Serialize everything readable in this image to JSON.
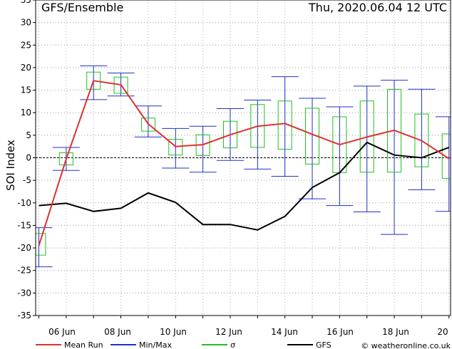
{
  "chart_data": {
    "type": "line",
    "title": "GFS/Ensemble",
    "timestamp": "Thu, 2020.06.04   12 UTC",
    "ylabel": "SOI Index",
    "ylim": [
      -35,
      35
    ],
    "yticks": [
      -35,
      -30,
      -25,
      -20,
      -15,
      -10,
      -5,
      0,
      5,
      10,
      15,
      20,
      25,
      30,
      35
    ],
    "xticks": [
      "06 Jun",
      "08 Jun",
      "10 Jun",
      "12 Jun",
      "14 Jun",
      "16 Jun",
      "18 Jun",
      "20"
    ],
    "grid": true,
    "legend_placement": "bottom",
    "x": [
      "05 Jun",
      "06 Jun",
      "07 Jun",
      "08 Jun",
      "09 Jun",
      "10 Jun",
      "11 Jun",
      "12 Jun",
      "13 Jun",
      "14 Jun",
      "15 Jun",
      "16 Jun",
      "17 Jun",
      "18 Jun",
      "19 Jun",
      "20 Jun"
    ],
    "series": [
      {
        "name": "Mean Run",
        "color": "#e03030",
        "values": [
          -19.5,
          -0.3,
          17.1,
          16.2,
          7.5,
          2.5,
          2.9,
          5.1,
          7.0,
          7.6,
          5.2,
          2.9,
          4.6,
          6.1,
          3.8,
          -0.2
        ]
      },
      {
        "name": "Min/Max",
        "color": "#2030c0",
        "min": [
          -24.2,
          -2.8,
          12.9,
          13.7,
          4.6,
          -2.3,
          -3.2,
          -0.6,
          -2.5,
          -4.1,
          -9.1,
          -10.6,
          -12.0,
          -17.0,
          -7.1,
          -11.9
        ],
        "max": [
          -15.5,
          2.3,
          20.4,
          18.8,
          11.5,
          6.5,
          7.0,
          10.9,
          12.8,
          18.0,
          13.2,
          11.3,
          15.9,
          17.2,
          15.2,
          9.1
        ]
      },
      {
        "name": "σ",
        "color": "#20c020",
        "low": [
          -21.6,
          -1.6,
          15.2,
          14.3,
          5.9,
          0.6,
          0.5,
          2.2,
          2.3,
          1.9,
          -1.4,
          -3.3,
          -3.2,
          -3.2,
          -2.0,
          -4.6
        ],
        "high": [
          -16.8,
          1.1,
          19.0,
          17.9,
          8.8,
          4.1,
          5.1,
          8.1,
          11.8,
          12.6,
          11.0,
          9.1,
          12.6,
          15.2,
          9.7,
          5.3
        ]
      },
      {
        "name": "GFS",
        "color": "#000000",
        "values": [
          -10.6,
          -10.1,
          -11.9,
          -11.2,
          -7.8,
          -9.9,
          -14.8,
          -14.8,
          -16.0,
          -13.0,
          -6.6,
          -3.3,
          3.4,
          0.6,
          0.0,
          2.3
        ]
      }
    ],
    "legend": [
      {
        "name": "Mean Run",
        "color": "#e03030"
      },
      {
        "name": "Min/Max",
        "color": "#2030c0"
      },
      {
        "name": "σ",
        "color": "#20c020"
      },
      {
        "name": "GFS",
        "color": "#000000"
      }
    ],
    "credit": "© weatheronline.co.uk"
  }
}
